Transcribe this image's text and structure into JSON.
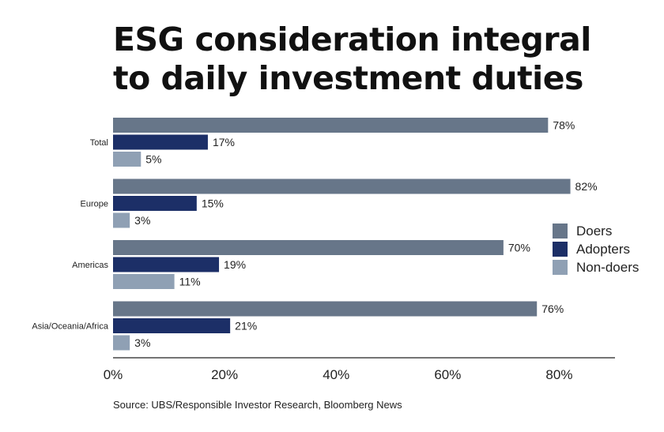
{
  "title": {
    "line1": "ESG consideration integral",
    "line2": "to daily investment duties"
  },
  "source": "Source: UBS/Responsible Investor Research, Bloomberg News",
  "chart_data": {
    "type": "bar",
    "orientation": "horizontal",
    "categories": [
      "Total",
      "Europe",
      "Americas",
      "Asia/Oceania/Africa"
    ],
    "series": [
      {
        "name": "Doers",
        "values": [
          78,
          82,
          70,
          76
        ],
        "color": "#677689"
      },
      {
        "name": "Adopters",
        "values": [
          17,
          15,
          19,
          21
        ],
        "color": "#1c2f67"
      },
      {
        "name": "Non-doers",
        "values": [
          5,
          3,
          11,
          3
        ],
        "color": "#8fa0b4"
      }
    ],
    "value_suffix": "%",
    "xlim": [
      0,
      90
    ],
    "xticks": [
      0,
      20,
      40,
      60,
      80
    ],
    "xtick_labels": [
      "0%",
      "20%",
      "40%",
      "60%",
      "80%"
    ],
    "grid": false,
    "legend_position": "right"
  }
}
